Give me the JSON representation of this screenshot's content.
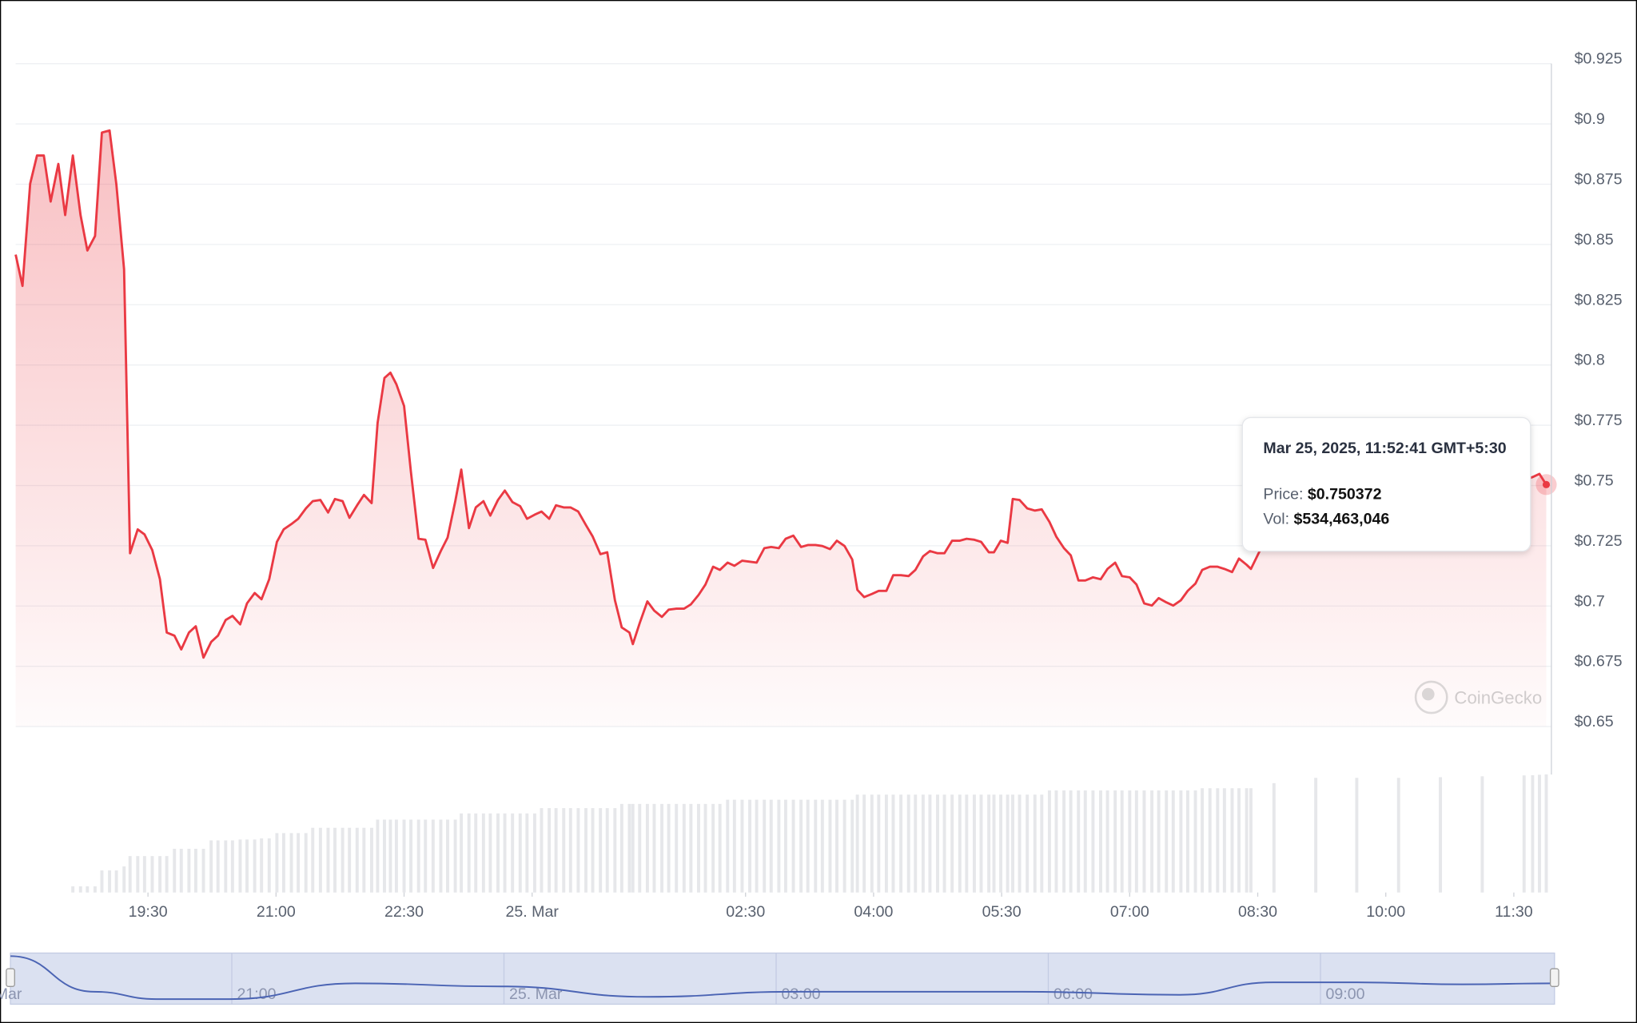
{
  "chart_data": {
    "type": "line",
    "series": [
      {
        "name": "Price",
        "color": "#ea3943",
        "values": [
          0.8458,
          0.8328,
          0.8752,
          0.8869,
          0.8869,
          0.8678,
          0.8834,
          0.8622,
          0.8869,
          0.8622,
          0.8475,
          0.8535,
          0.8964,
          0.8973,
          0.8748,
          0.8397,
          0.7219,
          0.7318,
          0.7297,
          0.7232,
          0.7111,
          0.689,
          0.6877,
          0.682,
          0.689,
          0.6916,
          0.6786,
          0.6851,
          0.6877,
          0.6942,
          0.6959,
          0.6924,
          0.7011,
          0.7054,
          0.7028,
          0.7111,
          0.7266,
          0.7318,
          0.734,
          0.7362,
          0.7405,
          0.7435,
          0.744,
          0.7388,
          0.7444,
          0.7435,
          0.7366,
          0.7418,
          0.7461,
          0.7427,
          0.776,
          0.7946,
          0.7968,
          0.792,
          0.783,
          0.7557,
          0.7279,
          0.7275,
          0.7158,
          0.7228,
          0.7284,
          0.7435,
          0.7566,
          0.7323,
          0.7409,
          0.7435,
          0.7375,
          0.744,
          0.7479,
          0.7431,
          0.7414,
          0.7362,
          0.7379,
          0.7392,
          0.7362,
          0.7418,
          0.7409,
          0.7409,
          0.7392,
          0.7336,
          0.7288,
          0.7215,
          0.7223,
          0.7024,
          0.6911,
          0.689,
          0.6842,
          0.6929,
          0.7019,
          0.6981,
          0.6955,
          0.6985,
          0.6989,
          0.6989,
          0.7007,
          0.7046,
          0.7089,
          0.7163,
          0.715,
          0.718,
          0.7167,
          0.7188,
          0.7184,
          0.718,
          0.724,
          0.7245,
          0.724,
          0.7279,
          0.7292,
          0.7245,
          0.7253,
          0.7253,
          0.7249,
          0.7236,
          0.7271,
          0.7249,
          0.7193,
          0.7067,
          0.7037,
          0.705,
          0.7063,
          0.7063,
          0.7128,
          0.7128,
          0.7124,
          0.715,
          0.7206,
          0.7228,
          0.7219,
          0.7219,
          0.7271,
          0.7271,
          0.7279,
          0.7275,
          0.7266,
          0.7223,
          0.7223,
          0.7271,
          0.7262,
          0.7444,
          0.744,
          0.7405,
          0.7396,
          0.7401,
          0.7349,
          0.7288,
          0.724,
          0.721,
          0.7106,
          0.7106,
          0.7119,
          0.7111,
          0.7154,
          0.718,
          0.7124,
          0.7119,
          0.7089,
          0.7011,
          0.7002,
          0.7033,
          0.7015,
          0.7002,
          0.7024,
          0.7063,
          0.7093,
          0.715,
          0.7163,
          0.7163,
          0.7154,
          0.7141,
          0.7197,
          0.7171,
          0.7154,
          0.7349,
          0.7392,
          0.7435,
          0.7479,
          0.7487,
          0.7513,
          0.7522,
          0.7535,
          0.7548,
          0.750372
        ]
      },
      {
        "name": "Vol",
        "color": "#e6e7ea",
        "axis": "y2",
        "values": [
          0,
          0,
          0,
          0,
          0,
          0,
          0,
          0,
          28000000,
          28000000,
          28000000,
          28000000,
          100000000,
          100000000,
          100000000,
          118000000,
          165000000,
          165000000,
          165000000,
          165000000,
          165000000,
          165000000,
          198000000,
          198000000,
          198000000,
          198000000,
          198000000,
          236000000,
          236000000,
          236000000,
          236000000,
          240000000,
          240000000,
          240000000,
          245000000,
          245000000,
          269000000,
          269000000,
          269000000,
          269000000,
          269000000,
          293000000,
          293000000,
          293000000,
          293000000,
          293000000,
          293000000,
          293000000,
          293000000,
          293000000,
          330000000,
          330000000,
          330000000,
          330000000,
          330000000,
          330000000,
          330000000,
          330000000,
          330000000,
          330000000,
          330000000,
          330000000,
          358000000,
          358000000,
          358000000,
          358000000,
          358000000,
          358000000,
          358000000,
          358000000,
          358000000,
          358000000,
          358000000,
          382000000,
          382000000,
          382000000,
          382000000,
          382000000,
          382000000,
          382000000,
          382000000,
          382000000,
          382000000,
          382000000,
          401000000,
          401000000,
          401000000,
          401000000,
          401000000,
          401000000,
          401000000,
          401000000,
          401000000,
          401000000,
          401000000,
          401000000,
          401000000,
          401000000,
          401000000,
          420000000,
          420000000,
          420000000,
          420000000,
          420000000,
          420000000,
          420000000,
          420000000,
          420000000,
          420000000,
          420000000,
          420000000,
          420000000,
          420000000,
          420000000,
          420000000,
          420000000,
          420000000,
          443000000,
          443000000,
          443000000,
          443000000,
          443000000,
          443000000,
          443000000,
          443000000,
          443000000,
          443000000,
          443000000,
          443000000,
          443000000,
          443000000,
          443000000,
          443000000,
          443000000,
          443000000,
          443000000,
          443000000,
          443000000,
          443000000,
          443000000,
          443000000,
          443000000,
          443000000,
          443000000,
          462000000,
          462000000,
          462000000,
          462000000,
          462000000,
          462000000,
          462000000,
          462000000,
          462000000,
          462000000,
          462000000,
          462000000,
          462000000,
          462000000,
          462000000,
          462000000,
          462000000,
          462000000,
          462000000,
          462000000,
          462000000,
          472000000,
          472000000,
          472000000,
          472000000,
          472000000,
          472000000,
          472000000,
          472000000,
          495000000,
          519000000,
          519000000,
          519000000,
          522000000,
          526000000,
          530000000,
          531000000,
          533000000,
          534463046
        ]
      }
    ],
    "x": [
      17.95,
      18.03,
      18.12,
      18.2,
      18.28,
      18.36,
      18.45,
      18.53,
      18.62,
      18.71,
      18.79,
      18.88,
      18.96,
      19.05,
      19.13,
      19.22,
      19.29,
      19.38,
      19.46,
      19.55,
      19.64,
      19.72,
      19.81,
      19.89,
      19.98,
      20.06,
      20.15,
      20.24,
      20.32,
      20.41,
      20.49,
      20.58,
      20.66,
      20.75,
      20.83,
      20.92,
      21.01,
      21.09,
      21.18,
      21.26,
      21.35,
      21.43,
      21.52,
      21.61,
      21.69,
      21.78,
      21.86,
      21.95,
      22.03,
      22.12,
      22.19,
      22.27,
      22.34,
      22.41,
      22.5,
      22.58,
      22.67,
      22.75,
      22.84,
      22.93,
      23.01,
      23.1,
      23.17,
      23.26,
      23.34,
      23.43,
      23.51,
      23.6,
      23.68,
      23.77,
      23.86,
      23.94,
      24.03,
      24.11,
      24.2,
      24.28,
      24.37,
      24.45,
      24.54,
      24.63,
      24.71,
      24.8,
      24.88,
      24.97,
      25.05,
      25.14,
      25.18,
      25.26,
      25.35,
      25.43,
      25.52,
      25.6,
      25.69,
      25.78,
      25.86,
      25.95,
      26.03,
      26.12,
      26.2,
      26.29,
      26.37,
      26.46,
      26.55,
      26.63,
      26.72,
      26.8,
      26.89,
      26.97,
      27.06,
      27.15,
      27.23,
      27.32,
      27.4,
      27.49,
      27.57,
      27.66,
      27.75,
      27.81,
      27.89,
      27.98,
      28.06,
      28.15,
      28.23,
      28.32,
      28.41,
      28.49,
      28.58,
      28.66,
      28.75,
      28.83,
      28.92,
      29.01,
      29.09,
      29.18,
      29.26,
      29.35,
      29.41,
      29.49,
      29.57,
      29.63,
      29.71,
      29.8,
      29.89,
      29.97,
      30.06,
      30.14,
      30.23,
      30.31,
      30.4,
      30.48,
      30.57,
      30.66,
      30.74,
      30.83,
      30.91,
      31.0,
      31.08,
      31.17,
      31.26,
      31.34,
      31.43,
      31.51,
      31.6,
      31.68,
      31.77,
      31.85,
      31.94,
      32.03,
      32.11,
      32.2,
      32.28,
      32.37,
      32.42,
      32.69,
      33.18,
      33.66,
      34.15,
      34.64,
      35.13,
      35.62,
      35.72,
      35.8,
      35.88
    ],
    "xlim": [
      17.95,
      35.94
    ],
    "xticks": [
      {
        "value": 19.5,
        "label": "19:30"
      },
      {
        "value": 21,
        "label": "21:00"
      },
      {
        "value": 22.5,
        "label": "22:30"
      },
      {
        "value": 24,
        "label": "25. Mar"
      },
      {
        "value": 26.5,
        "label": "02:30"
      },
      {
        "value": 28,
        "label": "04:00"
      },
      {
        "value": 29.5,
        "label": "05:30"
      },
      {
        "value": 31,
        "label": "07:00"
      },
      {
        "value": 32.5,
        "label": "08:30"
      },
      {
        "value": 34,
        "label": "10:00"
      },
      {
        "value": 35.5,
        "label": "11:30"
      }
    ],
    "ylim": [
      0.65,
      0.925
    ],
    "yticks": [
      {
        "value": 0.65,
        "label": "$0.65"
      },
      {
        "value": 0.675,
        "label": "$0.675"
      },
      {
        "value": 0.7,
        "label": "$0.7"
      },
      {
        "value": 0.725,
        "label": "$0.725"
      },
      {
        "value": 0.75,
        "label": "$0.75"
      },
      {
        "value": 0.775,
        "label": "$0.775"
      },
      {
        "value": 0.8,
        "label": "$0.8"
      },
      {
        "value": 0.825,
        "label": "$0.825"
      },
      {
        "value": 0.85,
        "label": "$0.85"
      },
      {
        "value": 0.875,
        "label": "$0.875"
      },
      {
        "value": 0.9,
        "label": "$0.9"
      },
      {
        "value": 0.925,
        "label": "$0.925"
      }
    ],
    "y2lim": [
      0,
      600000000
    ],
    "grid": true,
    "navigator": {
      "color": "#4b64b4",
      "x": [
        18.56,
        19.48,
        20.17,
        20.98,
        22.36,
        23.97,
        25.58,
        27.19,
        29.72,
        31.45,
        32.48,
        33.4,
        34.56,
        35.58
      ],
      "values": [
        0.915,
        0.741,
        0.705,
        0.705,
        0.782,
        0.767,
        0.716,
        0.741,
        0.741,
        0.726,
        0.787,
        0.787,
        0.777,
        0.782
      ],
      "xlim": [
        18.56,
        35.58
      ],
      "ylim": [
        0.68,
        0.93
      ],
      "xticks": [
        {
          "value": 18,
          "label": "Mar"
        },
        {
          "value": 21,
          "label": "21:00"
        },
        {
          "value": 24,
          "label": "25. Mar"
        },
        {
          "value": 27,
          "label": "03:00"
        },
        {
          "value": 30,
          "label": "06:00"
        },
        {
          "value": 33,
          "label": "09:00"
        }
      ]
    }
  },
  "tooltip": {
    "date": "Mar 25, 2025, 11:52:41 GMT+5:30",
    "price_label": "Price:",
    "price": "$0.750372",
    "vol_label": "Vol:",
    "vol": "$534,463,046"
  },
  "watermark": "CoinGecko"
}
